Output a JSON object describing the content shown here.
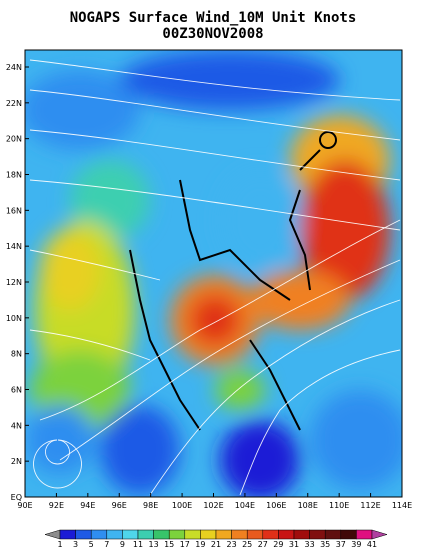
{
  "title": "NOGAPS Surface Wind_10M Unit Knots",
  "subtitle": "00Z30NOV2008",
  "y_labels": [
    "EQ",
    "2N",
    "4N",
    "6N",
    "8N",
    "10N",
    "12N",
    "14N",
    "16N",
    "18N",
    "20N",
    "22N",
    "24N"
  ],
  "x_labels": [
    "90E",
    "92E",
    "94E",
    "96E",
    "98E",
    "100E",
    "102E",
    "104E",
    "106E",
    "108E",
    "110E",
    "112E",
    "114E"
  ],
  "colorbar": {
    "labels": [
      "1",
      "3",
      "5",
      "7",
      "9",
      "11",
      "13",
      "15",
      "17",
      "19",
      "21",
      "23",
      "25",
      "27",
      "29",
      "31",
      "33",
      "35",
      "37",
      "39",
      "41"
    ],
    "colors": [
      "#8c8c8c",
      "#1a1ad6",
      "#1f5ae6",
      "#2f8ef0",
      "#3fb4f0",
      "#4fd6ea",
      "#3ccfb0",
      "#38c46a",
      "#7cd23c",
      "#c8dc28",
      "#e8d020",
      "#f0a820",
      "#f08020",
      "#e85a1e",
      "#e03018",
      "#c81414",
      "#a00c0c",
      "#801010",
      "#601010",
      "#400808",
      "#e01080",
      "#b040a0"
    ]
  }
}
